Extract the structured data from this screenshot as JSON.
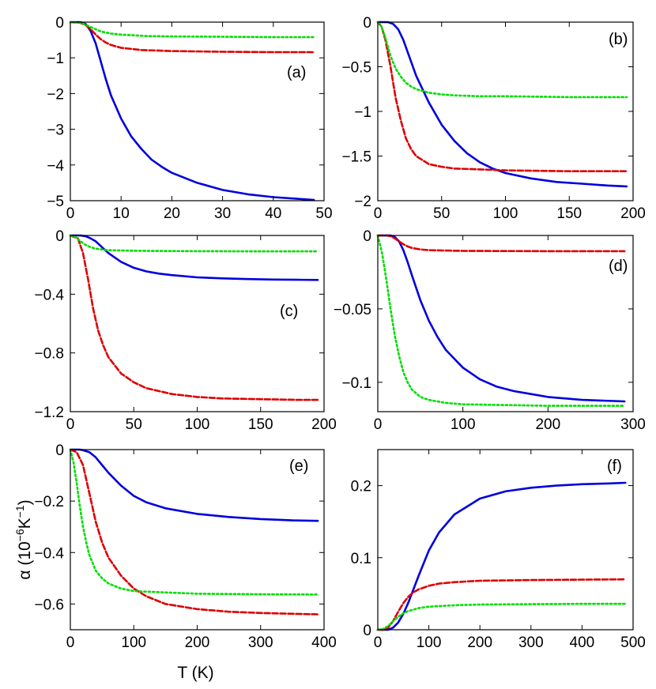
{
  "chart_data": [
    {
      "panel": "(a)",
      "type": "line",
      "xlim": [
        0,
        50
      ],
      "ylim": [
        -5,
        0
      ],
      "xticks": [
        "0",
        "10",
        "20",
        "30",
        "40",
        "50"
      ],
      "yticks": [
        "0",
        "−1",
        "−2",
        "−3",
        "−4",
        "−5"
      ],
      "xlabel": "",
      "ylabel": "",
      "series": [
        {
          "color": "#0000dd",
          "dash": "solid",
          "x": [
            0,
            2,
            3,
            4,
            5,
            6,
            7,
            8,
            10,
            12,
            14,
            16,
            18,
            20,
            25,
            30,
            35,
            40,
            45,
            48
          ],
          "y": [
            0,
            0,
            -0.05,
            -0.25,
            -0.6,
            -1.1,
            -1.6,
            -2.05,
            -2.7,
            -3.2,
            -3.55,
            -3.85,
            -4.05,
            -4.22,
            -4.5,
            -4.7,
            -4.82,
            -4.9,
            -4.95,
            -4.98
          ]
        },
        {
          "color": "#dd0000",
          "dash": "dashed",
          "x": [
            0,
            2,
            3,
            4,
            5,
            6,
            7,
            8,
            10,
            14,
            20,
            30,
            40,
            48
          ],
          "y": [
            0,
            -0.02,
            -0.08,
            -0.2,
            -0.35,
            -0.48,
            -0.57,
            -0.64,
            -0.72,
            -0.78,
            -0.81,
            -0.83,
            -0.84,
            -0.84
          ]
        },
        {
          "color": "#00dd00",
          "dash": "dotted",
          "x": [
            0,
            2,
            3,
            4,
            5,
            6,
            8,
            10,
            15,
            20,
            30,
            40,
            48
          ],
          "y": [
            0,
            -0.02,
            -0.07,
            -0.14,
            -0.2,
            -0.26,
            -0.32,
            -0.35,
            -0.39,
            -0.4,
            -0.41,
            -0.42,
            -0.42
          ]
        }
      ]
    },
    {
      "panel": "(b)",
      "type": "line",
      "xlim": [
        0,
        200
      ],
      "ylim": [
        -2,
        0
      ],
      "xticks": [
        "0",
        "50",
        "100",
        "150",
        "200"
      ],
      "yticks": [
        "0",
        "−0.5",
        "−1",
        "−1.5",
        "−2"
      ],
      "xlabel": "",
      "ylabel": "",
      "series": [
        {
          "color": "#0000dd",
          "dash": "solid",
          "x": [
            0,
            8,
            12,
            16,
            20,
            25,
            30,
            40,
            50,
            60,
            70,
            80,
            90,
            100,
            120,
            140,
            160,
            180,
            195
          ],
          "y": [
            0,
            0,
            -0.02,
            -0.08,
            -0.2,
            -0.4,
            -0.6,
            -0.9,
            -1.15,
            -1.33,
            -1.47,
            -1.57,
            -1.64,
            -1.69,
            -1.75,
            -1.79,
            -1.81,
            -1.83,
            -1.84
          ]
        },
        {
          "color": "#dd0000",
          "dash": "dashed",
          "x": [
            0,
            3,
            6,
            10,
            14,
            18,
            22,
            26,
            30,
            40,
            50,
            60,
            80,
            100,
            150,
            195
          ],
          "y": [
            0,
            -0.05,
            -0.2,
            -0.5,
            -0.85,
            -1.1,
            -1.3,
            -1.42,
            -1.5,
            -1.59,
            -1.62,
            -1.64,
            -1.65,
            -1.66,
            -1.67,
            -1.67
          ]
        },
        {
          "color": "#00dd00",
          "dash": "dotted",
          "x": [
            0,
            3,
            6,
            10,
            14,
            18,
            22,
            26,
            30,
            40,
            50,
            60,
            80,
            100,
            150,
            195
          ],
          "y": [
            0,
            -0.05,
            -0.18,
            -0.38,
            -0.52,
            -0.61,
            -0.68,
            -0.72,
            -0.75,
            -0.79,
            -0.81,
            -0.82,
            -0.83,
            -0.83,
            -0.84,
            -0.84
          ]
        }
      ]
    },
    {
      "panel": "(c)",
      "type": "line",
      "xlim": [
        0,
        200
      ],
      "ylim": [
        -1.2,
        0
      ],
      "xticks": [
        "0",
        "50",
        "100",
        "150",
        "200"
      ],
      "yticks": [
        "0",
        "−0.4",
        "−0.8",
        "−1.2"
      ],
      "xlabel": "",
      "ylabel": "",
      "series": [
        {
          "color": "#0000dd",
          "dash": "solid",
          "x": [
            0,
            8,
            12,
            16,
            20,
            25,
            30,
            40,
            50,
            60,
            70,
            80,
            100,
            120,
            140,
            160,
            180,
            195
          ],
          "y": [
            0,
            0,
            -0.005,
            -0.02,
            -0.04,
            -0.08,
            -0.12,
            -0.18,
            -0.22,
            -0.245,
            -0.26,
            -0.27,
            -0.285,
            -0.292,
            -0.297,
            -0.3,
            -0.302,
            -0.303
          ]
        },
        {
          "color": "#dd0000",
          "dash": "dashed",
          "x": [
            0,
            6,
            10,
            14,
            18,
            22,
            26,
            30,
            40,
            50,
            60,
            70,
            80,
            100,
            120,
            150,
            180,
            195
          ],
          "y": [
            0,
            -0.02,
            -0.12,
            -0.3,
            -0.5,
            -0.65,
            -0.75,
            -0.83,
            -0.94,
            -1.0,
            -1.04,
            -1.06,
            -1.08,
            -1.1,
            -1.11,
            -1.115,
            -1.12,
            -1.12
          ]
        },
        {
          "color": "#00dd00",
          "dash": "dotted",
          "x": [
            0,
            4,
            8,
            12,
            16,
            20,
            25,
            30,
            40,
            50,
            60,
            80,
            100,
            150,
            195
          ],
          "y": [
            0,
            -0.01,
            -0.04,
            -0.065,
            -0.08,
            -0.09,
            -0.095,
            -0.1,
            -0.102,
            -0.104,
            -0.105,
            -0.106,
            -0.107,
            -0.108,
            -0.108
          ]
        }
      ]
    },
    {
      "panel": "(d)",
      "type": "line",
      "xlim": [
        0,
        300
      ],
      "ylim": [
        -0.12,
        0
      ],
      "xticks": [
        "0",
        "100",
        "200",
        "300"
      ],
      "yticks": [
        "0",
        "−0.05",
        "−0.1"
      ],
      "xlabel": "",
      "ylabel": "",
      "series": [
        {
          "color": "#0000dd",
          "dash": "solid",
          "x": [
            0,
            15,
            20,
            25,
            30,
            35,
            40,
            50,
            60,
            70,
            80,
            100,
            120,
            140,
            160,
            180,
            200,
            240,
            290
          ],
          "y": [
            0,
            0,
            -0.001,
            -0.004,
            -0.01,
            -0.018,
            -0.027,
            -0.044,
            -0.058,
            -0.069,
            -0.078,
            -0.09,
            -0.098,
            -0.103,
            -0.106,
            -0.108,
            -0.11,
            -0.112,
            -0.113
          ]
        },
        {
          "color": "#dd0000",
          "dash": "dashed",
          "x": [
            0,
            10,
            15,
            20,
            25,
            30,
            35,
            40,
            50,
            60,
            80,
            100,
            150,
            200,
            290
          ],
          "y": [
            0,
            0,
            -0.0005,
            -0.002,
            -0.004,
            -0.006,
            -0.0075,
            -0.0085,
            -0.0095,
            -0.01,
            -0.0103,
            -0.0105,
            -0.0106,
            -0.0107,
            -0.0107
          ]
        },
        {
          "color": "#00dd00",
          "dash": "dotted",
          "x": [
            0,
            5,
            10,
            15,
            20,
            25,
            30,
            35,
            40,
            50,
            60,
            70,
            80,
            100,
            150,
            200,
            290
          ],
          "y": [
            0,
            -0.012,
            -0.03,
            -0.05,
            -0.068,
            -0.082,
            -0.093,
            -0.1,
            -0.105,
            -0.11,
            -0.112,
            -0.113,
            -0.114,
            -0.115,
            -0.1155,
            -0.116,
            -0.116
          ]
        }
      ]
    },
    {
      "panel": "(e)",
      "type": "line",
      "xlim": [
        0,
        400
      ],
      "ylim": [
        -0.7,
        0
      ],
      "xticks": [
        "0",
        "100",
        "200",
        "300",
        "400"
      ],
      "yticks": [
        "0",
        "−0.2",
        "−0.4",
        "−0.6"
      ],
      "xlabel": "T (K)",
      "ylabel": "α  (10−6K−1)",
      "series": [
        {
          "color": "#0000dd",
          "dash": "solid",
          "x": [
            0,
            15,
            20,
            30,
            40,
            50,
            60,
            80,
            100,
            120,
            150,
            200,
            250,
            300,
            350,
            390
          ],
          "y": [
            0,
            0,
            -0.002,
            -0.01,
            -0.03,
            -0.06,
            -0.09,
            -0.14,
            -0.18,
            -0.205,
            -0.228,
            -0.25,
            -0.262,
            -0.27,
            -0.275,
            -0.277
          ]
        },
        {
          "color": "#dd0000",
          "dash": "dashed",
          "x": [
            0,
            10,
            20,
            30,
            40,
            50,
            60,
            80,
            100,
            120,
            150,
            200,
            250,
            300,
            350,
            390
          ],
          "y": [
            0,
            -0.01,
            -0.06,
            -0.17,
            -0.28,
            -0.36,
            -0.42,
            -0.49,
            -0.54,
            -0.57,
            -0.6,
            -0.62,
            -0.63,
            -0.635,
            -0.638,
            -0.64
          ]
        },
        {
          "color": "#00dd00",
          "dash": "dotted",
          "x": [
            0,
            5,
            10,
            15,
            20,
            25,
            30,
            40,
            50,
            60,
            80,
            100,
            150,
            200,
            300,
            390
          ],
          "y": [
            0,
            -0.05,
            -0.13,
            -0.22,
            -0.3,
            -0.36,
            -0.41,
            -0.47,
            -0.5,
            -0.52,
            -0.54,
            -0.55,
            -0.555,
            -0.56,
            -0.562,
            -0.563
          ]
        }
      ]
    },
    {
      "panel": "(f)",
      "type": "line",
      "xlim": [
        0,
        500
      ],
      "ylim": [
        0,
        0.25
      ],
      "xticks": [
        "0",
        "100",
        "200",
        "300",
        "400",
        "500"
      ],
      "yticks": [
        "0",
        "0.1",
        "0.2"
      ],
      "xlabel": "",
      "ylabel": "",
      "series": [
        {
          "color": "#0000dd",
          "dash": "solid",
          "x": [
            0,
            20,
            30,
            40,
            50,
            60,
            80,
            100,
            120,
            150,
            200,
            250,
            300,
            350,
            400,
            450,
            485
          ],
          "y": [
            0,
            0,
            0.003,
            0.01,
            0.022,
            0.038,
            0.075,
            0.11,
            0.135,
            0.16,
            0.182,
            0.192,
            0.197,
            0.2,
            0.202,
            0.203,
            0.204
          ]
        },
        {
          "color": "#dd0000",
          "dash": "dashed",
          "x": [
            0,
            10,
            20,
            30,
            40,
            50,
            60,
            70,
            80,
            100,
            120,
            150,
            200,
            300,
            400,
            485
          ],
          "y": [
            0,
            0,
            0.003,
            0.012,
            0.025,
            0.037,
            0.046,
            0.052,
            0.056,
            0.061,
            0.064,
            0.066,
            0.068,
            0.069,
            0.0695,
            0.07
          ]
        },
        {
          "color": "#00dd00",
          "dash": "dotted",
          "x": [
            0,
            10,
            20,
            30,
            40,
            50,
            60,
            80,
            100,
            150,
            200,
            300,
            400,
            485
          ],
          "y": [
            0,
            0.001,
            0.005,
            0.012,
            0.018,
            0.023,
            0.026,
            0.03,
            0.032,
            0.034,
            0.035,
            0.0355,
            0.036,
            0.036
          ]
        }
      ]
    }
  ]
}
